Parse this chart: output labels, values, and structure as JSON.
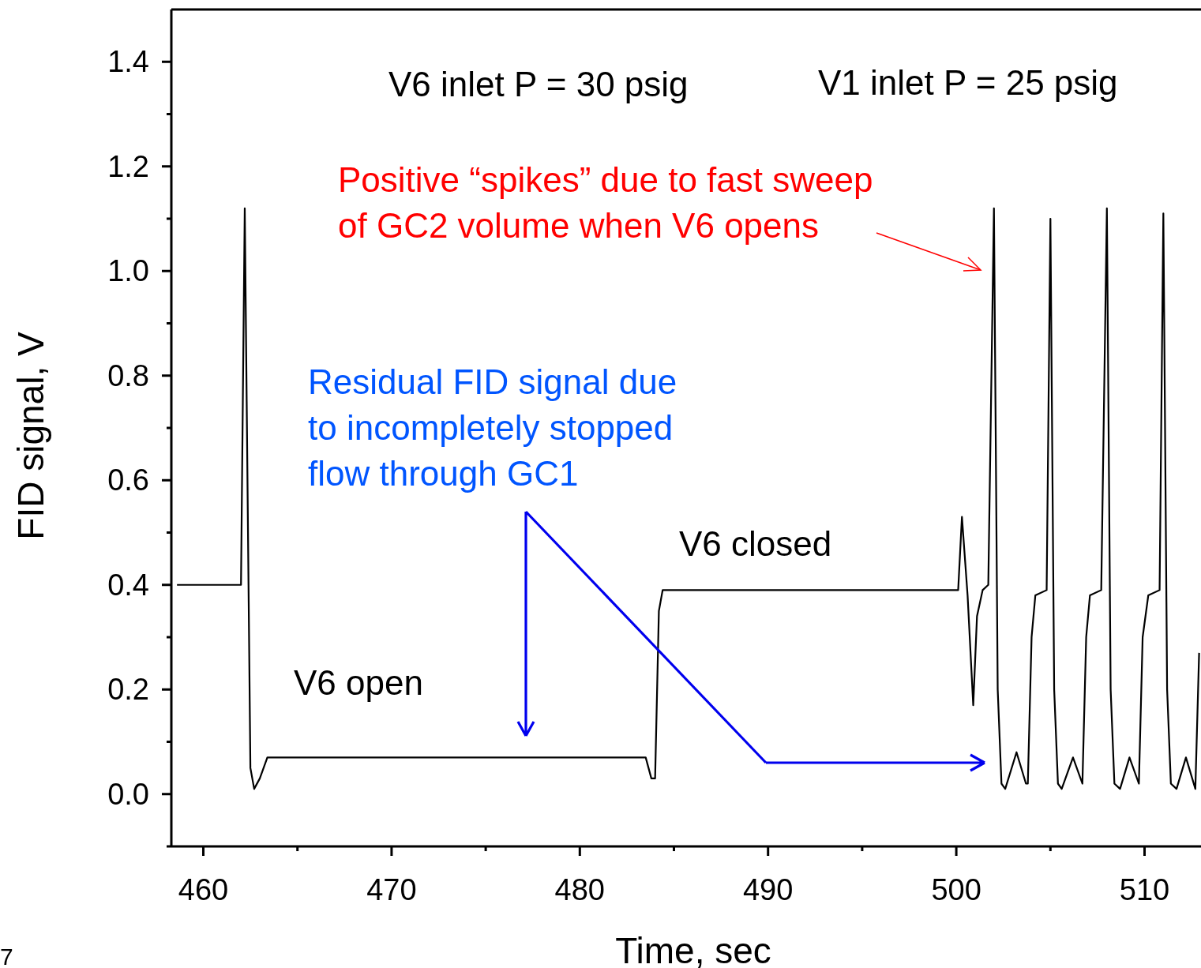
{
  "chart_data": {
    "type": "line",
    "xlabel": "Time, sec",
    "ylabel": "FID signal, V",
    "xlim": [
      458.3,
      513
    ],
    "ylim": [
      -0.1,
      1.5
    ],
    "xticks": [
      460,
      {
        "value": 465,
        "label": null
      },
      470,
      {
        "value": 475,
        "label": null
      },
      480,
      {
        "value": 485,
        "label": null
      },
      490,
      {
        "value": 495,
        "label": null
      },
      500,
      {
        "value": 505,
        "label": null
      },
      510
    ],
    "yticks": [
      {
        "value": -0.1,
        "label": null
      },
      {
        "value": 0,
        "label": "0.0"
      },
      {
        "value": 0.1,
        "label": null
      },
      0.2,
      {
        "value": 0.3,
        "label": null
      },
      0.4,
      {
        "value": 0.5,
        "label": null
      },
      0.6,
      {
        "value": 0.7,
        "label": null
      },
      0.8,
      {
        "value": 0.9,
        "label": null
      },
      {
        "value": 1,
        "label": "1.0"
      },
      {
        "value": 1.1,
        "label": null
      },
      1.2,
      {
        "value": 1.3,
        "label": null
      },
      1.4
    ],
    "grid": false,
    "marker": "none",
    "line_style": "solid",
    "series": [
      {
        "color": "#000000",
        "x": [
          458.6,
          462.0,
          462.2,
          462.4,
          462.5,
          462.7,
          463.0,
          463.4,
          470.2,
          478.5,
          483.5,
          483.8,
          484.0,
          484.2,
          484.4,
          491.1,
          500.1,
          500.3,
          500.6,
          500.9,
          501.1,
          501.4,
          501.7,
          502.0,
          502.2,
          502.4,
          502.6,
          503.2,
          503.7,
          503.8,
          504.0,
          504.2,
          504.8,
          505.0,
          505.2,
          505.4,
          505.6,
          506.2,
          506.7,
          506.9,
          507.1,
          507.7,
          508.0,
          508.2,
          508.4,
          508.7,
          509.2,
          509.7,
          509.9,
          510.2,
          510.8,
          511.0,
          511.2,
          511.4,
          511.7,
          512.2,
          512.7,
          512.9
        ],
        "values": [
          0.4,
          0.4,
          1.12,
          0.4,
          0.05,
          0.01,
          0.03,
          0.07,
          0.07,
          0.07,
          0.07,
          0.03,
          0.03,
          0.35,
          0.39,
          0.39,
          0.39,
          0.53,
          0.38,
          0.17,
          0.34,
          0.39,
          0.4,
          1.12,
          0.2,
          0.02,
          0.01,
          0.08,
          0.02,
          0.02,
          0.3,
          0.38,
          0.39,
          1.1,
          0.2,
          0.02,
          0.01,
          0.07,
          0.02,
          0.3,
          0.38,
          0.39,
          1.12,
          0.2,
          0.02,
          0.01,
          0.07,
          0.02,
          0.3,
          0.38,
          0.39,
          1.11,
          0.2,
          0.02,
          0.01,
          0.07,
          0.01,
          0.27
        ]
      }
    ],
    "annotations": [
      "V6 inlet P = 30 psig",
      "V1 inlet P = 25 psig",
      "Positive “spikes” due to fast sweep\nof GC2 volume when V6 opens",
      "Residual FID signal due\nto incompletely stopped\nflow through GC1",
      "V6 closed",
      "V6 open",
      "7"
    ]
  }
}
